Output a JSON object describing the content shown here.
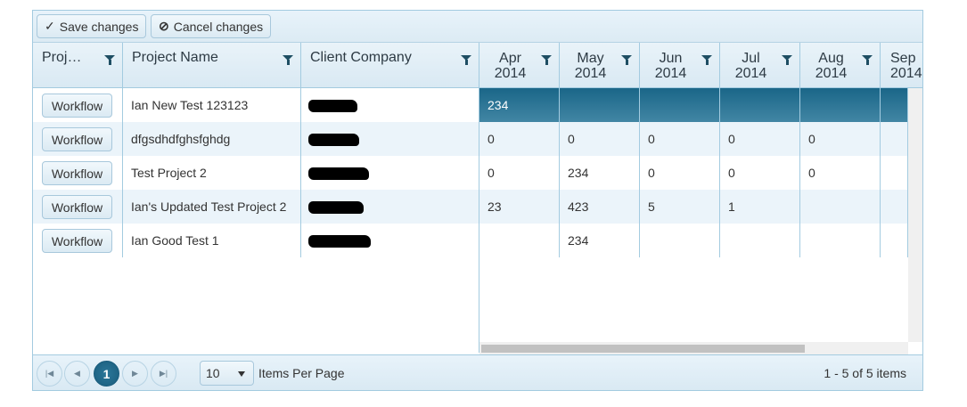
{
  "toolbar": {
    "save_label": "Save changes",
    "cancel_label": "Cancel changes"
  },
  "columns": {
    "locked": [
      "Proj…",
      "Project Name",
      "Client Company"
    ],
    "months": [
      [
        "Apr",
        "2014"
      ],
      [
        "May",
        "2014"
      ],
      [
        "Jun",
        "2014"
      ],
      [
        "Jul",
        "2014"
      ],
      [
        "Aug",
        "2014"
      ],
      [
        "Sep",
        "2014"
      ]
    ]
  },
  "rows": [
    {
      "button": "Workflow",
      "name": "Ian New Test 123123",
      "values": [
        "234",
        "",
        "",
        "",
        "",
        ""
      ]
    },
    {
      "button": "Workflow",
      "name": "dfgsdhdfghsfghdg",
      "values": [
        "0",
        "0",
        "0",
        "0",
        "0",
        ""
      ]
    },
    {
      "button": "Workflow",
      "name": "Test Project 2",
      "values": [
        "0",
        "234",
        "0",
        "0",
        "0",
        ""
      ]
    },
    {
      "button": "Workflow",
      "name": "Ian's Updated Test Project 2",
      "values": [
        "23",
        "423",
        "5",
        "1",
        "",
        ""
      ]
    },
    {
      "button": "Workflow",
      "name": "Ian Good Test 1",
      "values": [
        "",
        "234",
        "",
        "",
        "",
        ""
      ]
    }
  ],
  "pager": {
    "current_page": "1",
    "page_size": "10",
    "items_per_page_label": "Items Per Page",
    "summary": "1 - 5 of 5 items"
  },
  "colors": {
    "accent": "#1a6688",
    "border": "#a3cbe0"
  }
}
